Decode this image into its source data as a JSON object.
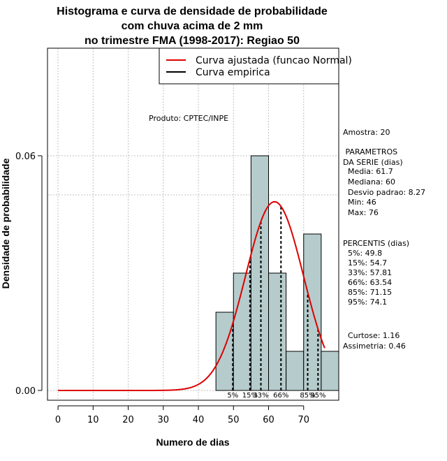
{
  "chart_data": {
    "type": "histogram",
    "title_lines": [
      "Histograma e curva de densidade de probabilidade",
      "com chuva acima de 2 mm",
      "no trimestre FMA (1998-2017): Regiao 50"
    ],
    "xlabel": "Numero de dias",
    "ylabel": "Densidade de probabilidade",
    "xlim": [
      -3,
      80
    ],
    "ylim": [
      -0.0025,
      0.0875
    ],
    "x_ticks": [
      0,
      10,
      20,
      30,
      40,
      50,
      60,
      70
    ],
    "x_tick_labels": [
      "0",
      "10",
      "20",
      "30",
      "40",
      "50",
      "60",
      "70"
    ],
    "y_ticks": [
      0.0,
      0.06
    ],
    "y_tick_labels": [
      "0.00",
      "0.06"
    ],
    "grid_x": [
      0,
      10,
      20,
      30,
      40,
      50,
      60,
      70
    ],
    "grid_y": [
      0.0,
      0.05,
      0.06
    ],
    "bins": [
      {
        "x0": 45,
        "x1": 50,
        "density": 0.02
      },
      {
        "x0": 50,
        "x1": 55,
        "density": 0.03
      },
      {
        "x0": 55,
        "x1": 60,
        "density": 0.06
      },
      {
        "x0": 60,
        "x1": 65,
        "density": 0.03
      },
      {
        "x0": 65,
        "x1": 70,
        "density": 0.01
      },
      {
        "x0": 70,
        "x1": 75,
        "density": 0.04
      },
      {
        "x0": 75,
        "x1": 80,
        "density": 0.01
      }
    ],
    "bar_color": "#b6cccc",
    "normal_curve": {
      "mean": 61.7,
      "sd": 8.27,
      "x_from": 0,
      "x_to": 76,
      "color": "#dd0000"
    },
    "legend": [
      {
        "label": "Curva ajustada (funcao Normal)",
        "color": "#dd0000"
      },
      {
        "label": "Curva empirica",
        "color": "#000000"
      }
    ],
    "product_label": "Produto: CPTEC/INPE",
    "percentiles": [
      {
        "label": "5%",
        "value": 49.8
      },
      {
        "label": "15%",
        "value": 54.7
      },
      {
        "label": "33%",
        "value": 57.81
      },
      {
        "label": "66%",
        "value": 63.54
      },
      {
        "label": "85%",
        "value": 71.15
      },
      {
        "label": "95%",
        "value": 74.1
      }
    ],
    "side_panel": [
      "Amostra: 20",
      " PARAMETROS",
      "DA SERIE (dias)",
      "  Media: 61.7",
      "  Mediana: 60",
      "  Desvio padrao: 8.27",
      "  Min: 46",
      "  Max: 76",
      "PERCENTIS (dias)",
      "  5%: 49.8",
      "  15%: 54.7",
      "  33%: 57.81",
      "  66%: 63.54",
      "  85%: 71.15",
      "  95%: 74.1",
      "  Curtose: 1.16",
      "Assimetria: 0.46"
    ]
  }
}
